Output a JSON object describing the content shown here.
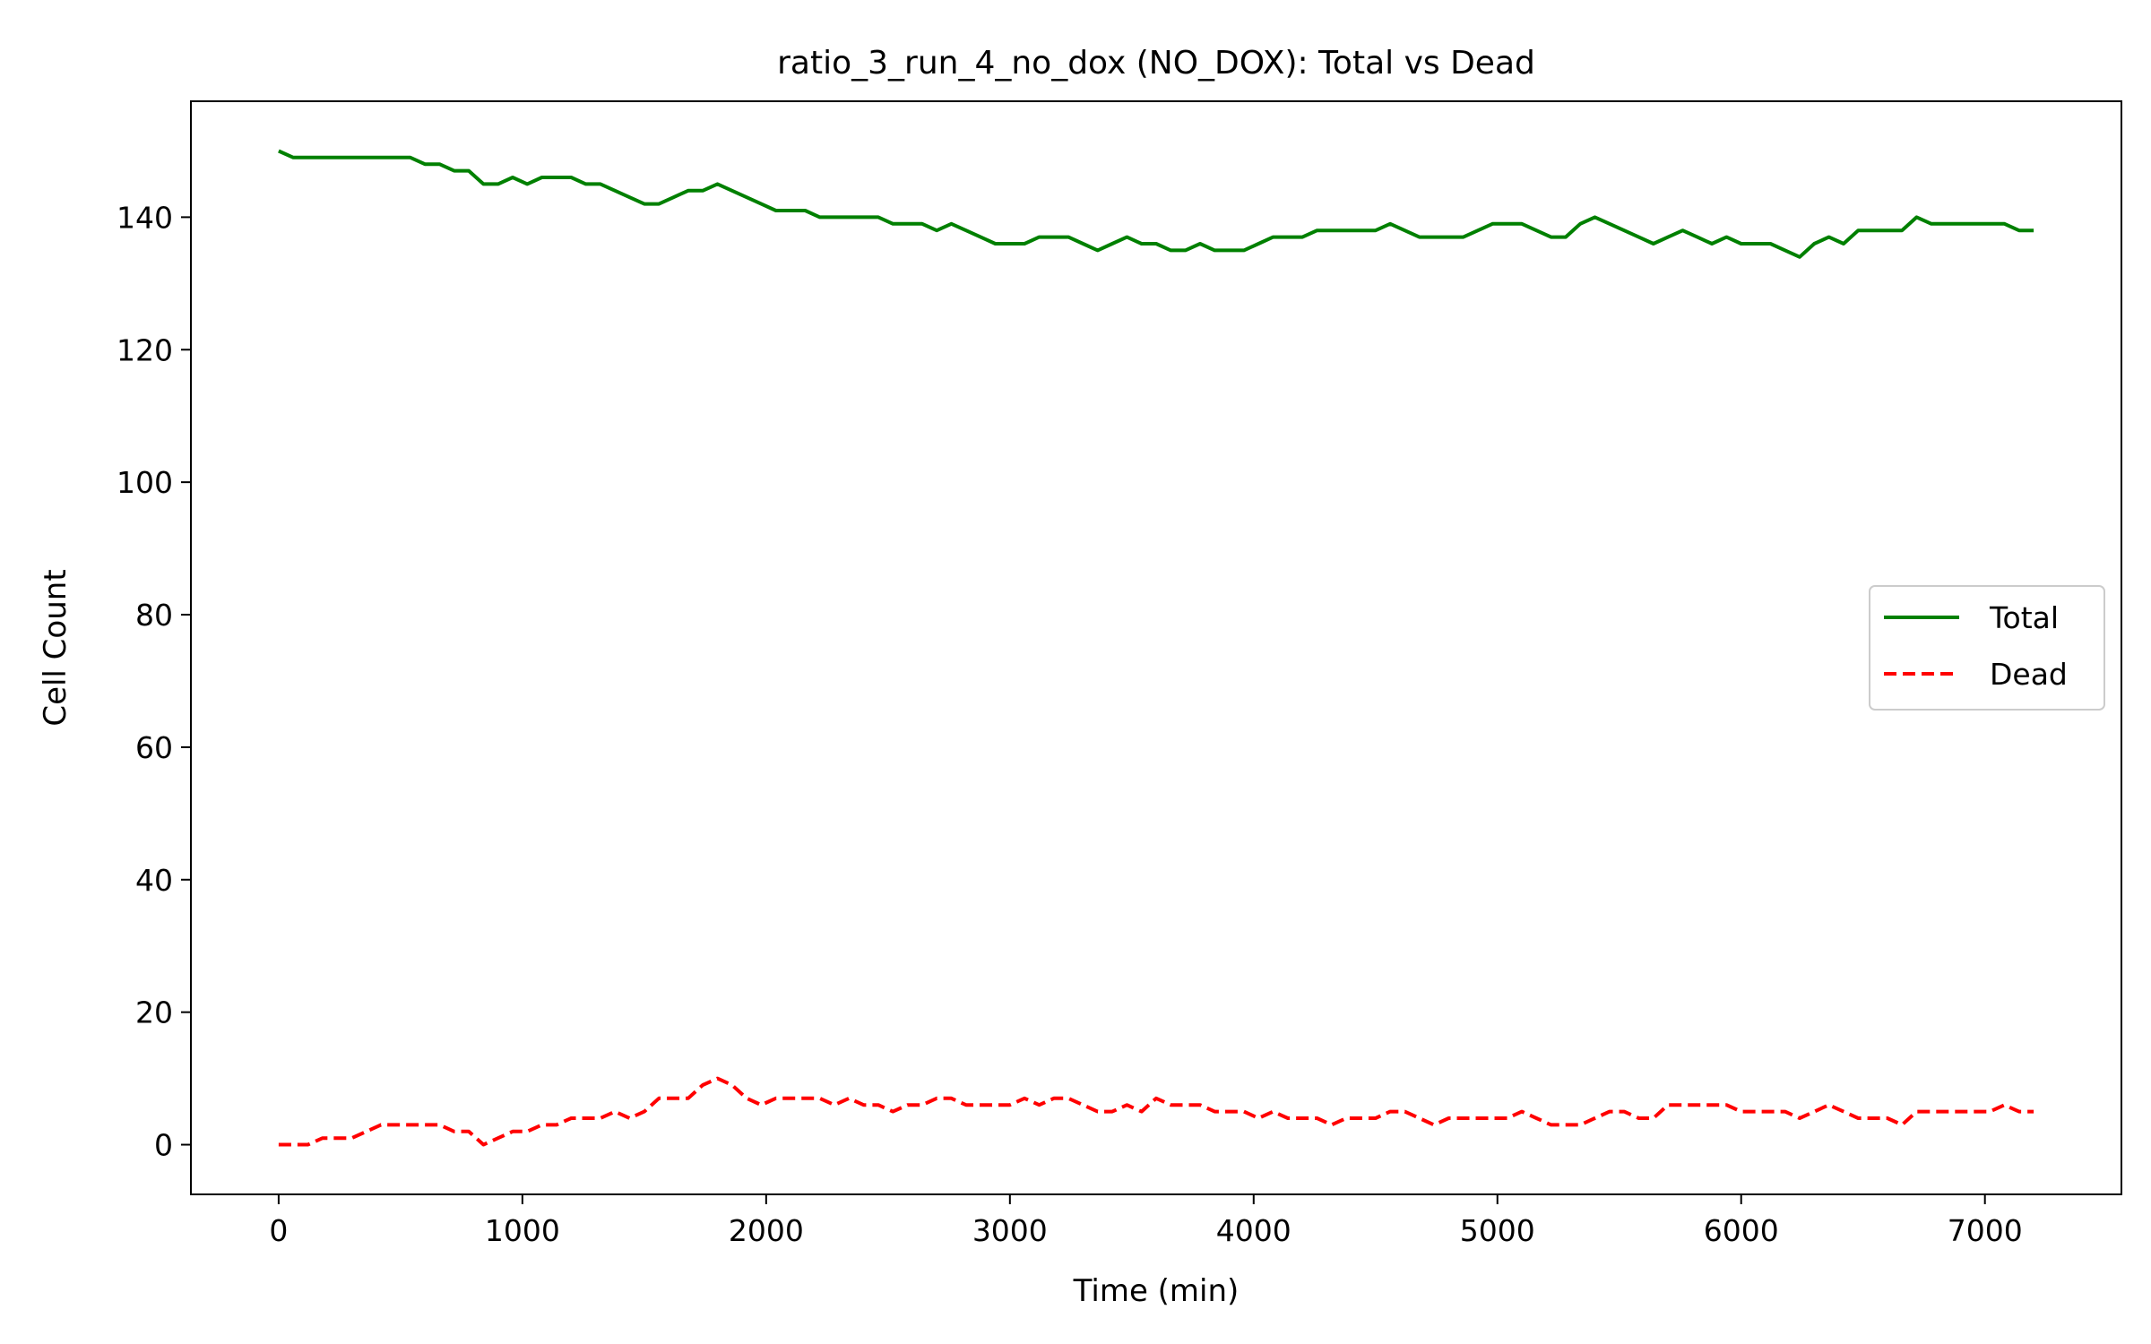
{
  "chart_data": {
    "type": "line",
    "title": "ratio_3_run_4_no_dox (NO_DOX): Total vs Dead",
    "xlabel": "Time (min)",
    "ylabel": "Cell Count",
    "xlim": [
      -360,
      7560
    ],
    "ylim": [
      -7.5,
      157.5
    ],
    "xticks": [
      0,
      1000,
      2000,
      3000,
      4000,
      5000,
      6000,
      7000
    ],
    "yticks": [
      0,
      20,
      40,
      60,
      80,
      100,
      120,
      140
    ],
    "grid": false,
    "legend_position": "center-right",
    "series": [
      {
        "name": "Total",
        "color": "#008000",
        "style": "solid",
        "x": [
          0,
          60,
          120,
          180,
          240,
          300,
          360,
          420,
          480,
          540,
          600,
          660,
          720,
          780,
          840,
          900,
          960,
          1020,
          1080,
          1140,
          1200,
          1260,
          1320,
          1380,
          1440,
          1500,
          1560,
          1620,
          1680,
          1740,
          1800,
          1860,
          1920,
          1980,
          2040,
          2100,
          2160,
          2220,
          2280,
          2340,
          2400,
          2460,
          2520,
          2580,
          2640,
          2700,
          2760,
          2820,
          2880,
          2940,
          3000,
          3060,
          3120,
          3180,
          3240,
          3300,
          3360,
          3420,
          3480,
          3540,
          3600,
          3660,
          3720,
          3780,
          3840,
          3900,
          3960,
          4020,
          4080,
          4140,
          4200,
          4260,
          4320,
          4380,
          4440,
          4500,
          4560,
          4620,
          4680,
          4740,
          4800,
          4860,
          4920,
          4980,
          5040,
          5100,
          5160,
          5220,
          5280,
          5340,
          5400,
          5460,
          5520,
          5580,
          5640,
          5700,
          5760,
          5820,
          5880,
          5940,
          6000,
          6060,
          6120,
          6180,
          6240,
          6300,
          6360,
          6420,
          6480,
          6540,
          6600,
          6660,
          6720,
          6780,
          6840,
          6900,
          6960,
          7020,
          7080,
          7140,
          7200
        ],
        "y": [
          150,
          149,
          149,
          149,
          149,
          149,
          149,
          149,
          149,
          149,
          148,
          148,
          147,
          147,
          145,
          145,
          146,
          145,
          146,
          146,
          146,
          145,
          145,
          144,
          143,
          142,
          142,
          143,
          144,
          144,
          145,
          144,
          143,
          142,
          141,
          141,
          141,
          140,
          140,
          140,
          140,
          140,
          139,
          139,
          139,
          138,
          139,
          138,
          137,
          136,
          136,
          136,
          137,
          137,
          137,
          136,
          135,
          136,
          137,
          136,
          136,
          135,
          135,
          136,
          135,
          135,
          135,
          136,
          137,
          137,
          137,
          138,
          138,
          138,
          138,
          138,
          139,
          138,
          137,
          137,
          137,
          137,
          138,
          139,
          139,
          139,
          138,
          137,
          137,
          139,
          140,
          139,
          138,
          137,
          136,
          137,
          138,
          137,
          136,
          137,
          136,
          136,
          136,
          135,
          134,
          136,
          137,
          136,
          138,
          138,
          138,
          138,
          140,
          139,
          139,
          139,
          139,
          139,
          139,
          138,
          138
        ]
      },
      {
        "name": "Dead",
        "color": "#ff0000",
        "style": "dashed",
        "x": [
          0,
          60,
          120,
          180,
          240,
          300,
          360,
          420,
          480,
          540,
          600,
          660,
          720,
          780,
          840,
          900,
          960,
          1020,
          1080,
          1140,
          1200,
          1260,
          1320,
          1380,
          1440,
          1500,
          1560,
          1620,
          1680,
          1740,
          1800,
          1860,
          1920,
          1980,
          2040,
          2100,
          2160,
          2220,
          2280,
          2340,
          2400,
          2460,
          2520,
          2580,
          2640,
          2700,
          2760,
          2820,
          2880,
          2940,
          3000,
          3060,
          3120,
          3180,
          3240,
          3300,
          3360,
          3420,
          3480,
          3540,
          3600,
          3660,
          3720,
          3780,
          3840,
          3900,
          3960,
          4020,
          4080,
          4140,
          4200,
          4260,
          4320,
          4380,
          4440,
          4500,
          4560,
          4620,
          4680,
          4740,
          4800,
          4860,
          4920,
          4980,
          5040,
          5100,
          5160,
          5220,
          5280,
          5340,
          5400,
          5460,
          5520,
          5580,
          5640,
          5700,
          5760,
          5820,
          5880,
          5940,
          6000,
          6060,
          6120,
          6180,
          6240,
          6300,
          6360,
          6420,
          6480,
          6540,
          6600,
          6660,
          6720,
          6780,
          6840,
          6900,
          6960,
          7020,
          7080,
          7140,
          7200
        ],
        "y": [
          0,
          0,
          0,
          1,
          1,
          1,
          2,
          3,
          3,
          3,
          3,
          3,
          2,
          2,
          0,
          1,
          2,
          2,
          3,
          3,
          4,
          4,
          4,
          5,
          4,
          5,
          7,
          7,
          7,
          9,
          10,
          9,
          7,
          6,
          7,
          7,
          7,
          7,
          6,
          7,
          6,
          6,
          5,
          6,
          6,
          7,
          7,
          6,
          6,
          6,
          6,
          7,
          6,
          7,
          7,
          6,
          5,
          5,
          6,
          5,
          7,
          6,
          6,
          6,
          5,
          5,
          5,
          4,
          5,
          4,
          4,
          4,
          3,
          4,
          4,
          4,
          5,
          5,
          4,
          3,
          4,
          4,
          4,
          4,
          4,
          5,
          4,
          3,
          3,
          3,
          4,
          5,
          5,
          4,
          4,
          6,
          6,
          6,
          6,
          6,
          5,
          5,
          5,
          5,
          4,
          5,
          6,
          5,
          4,
          4,
          4,
          3,
          5,
          5,
          5,
          5,
          5,
          5,
          6,
          5,
          5
        ]
      }
    ]
  }
}
